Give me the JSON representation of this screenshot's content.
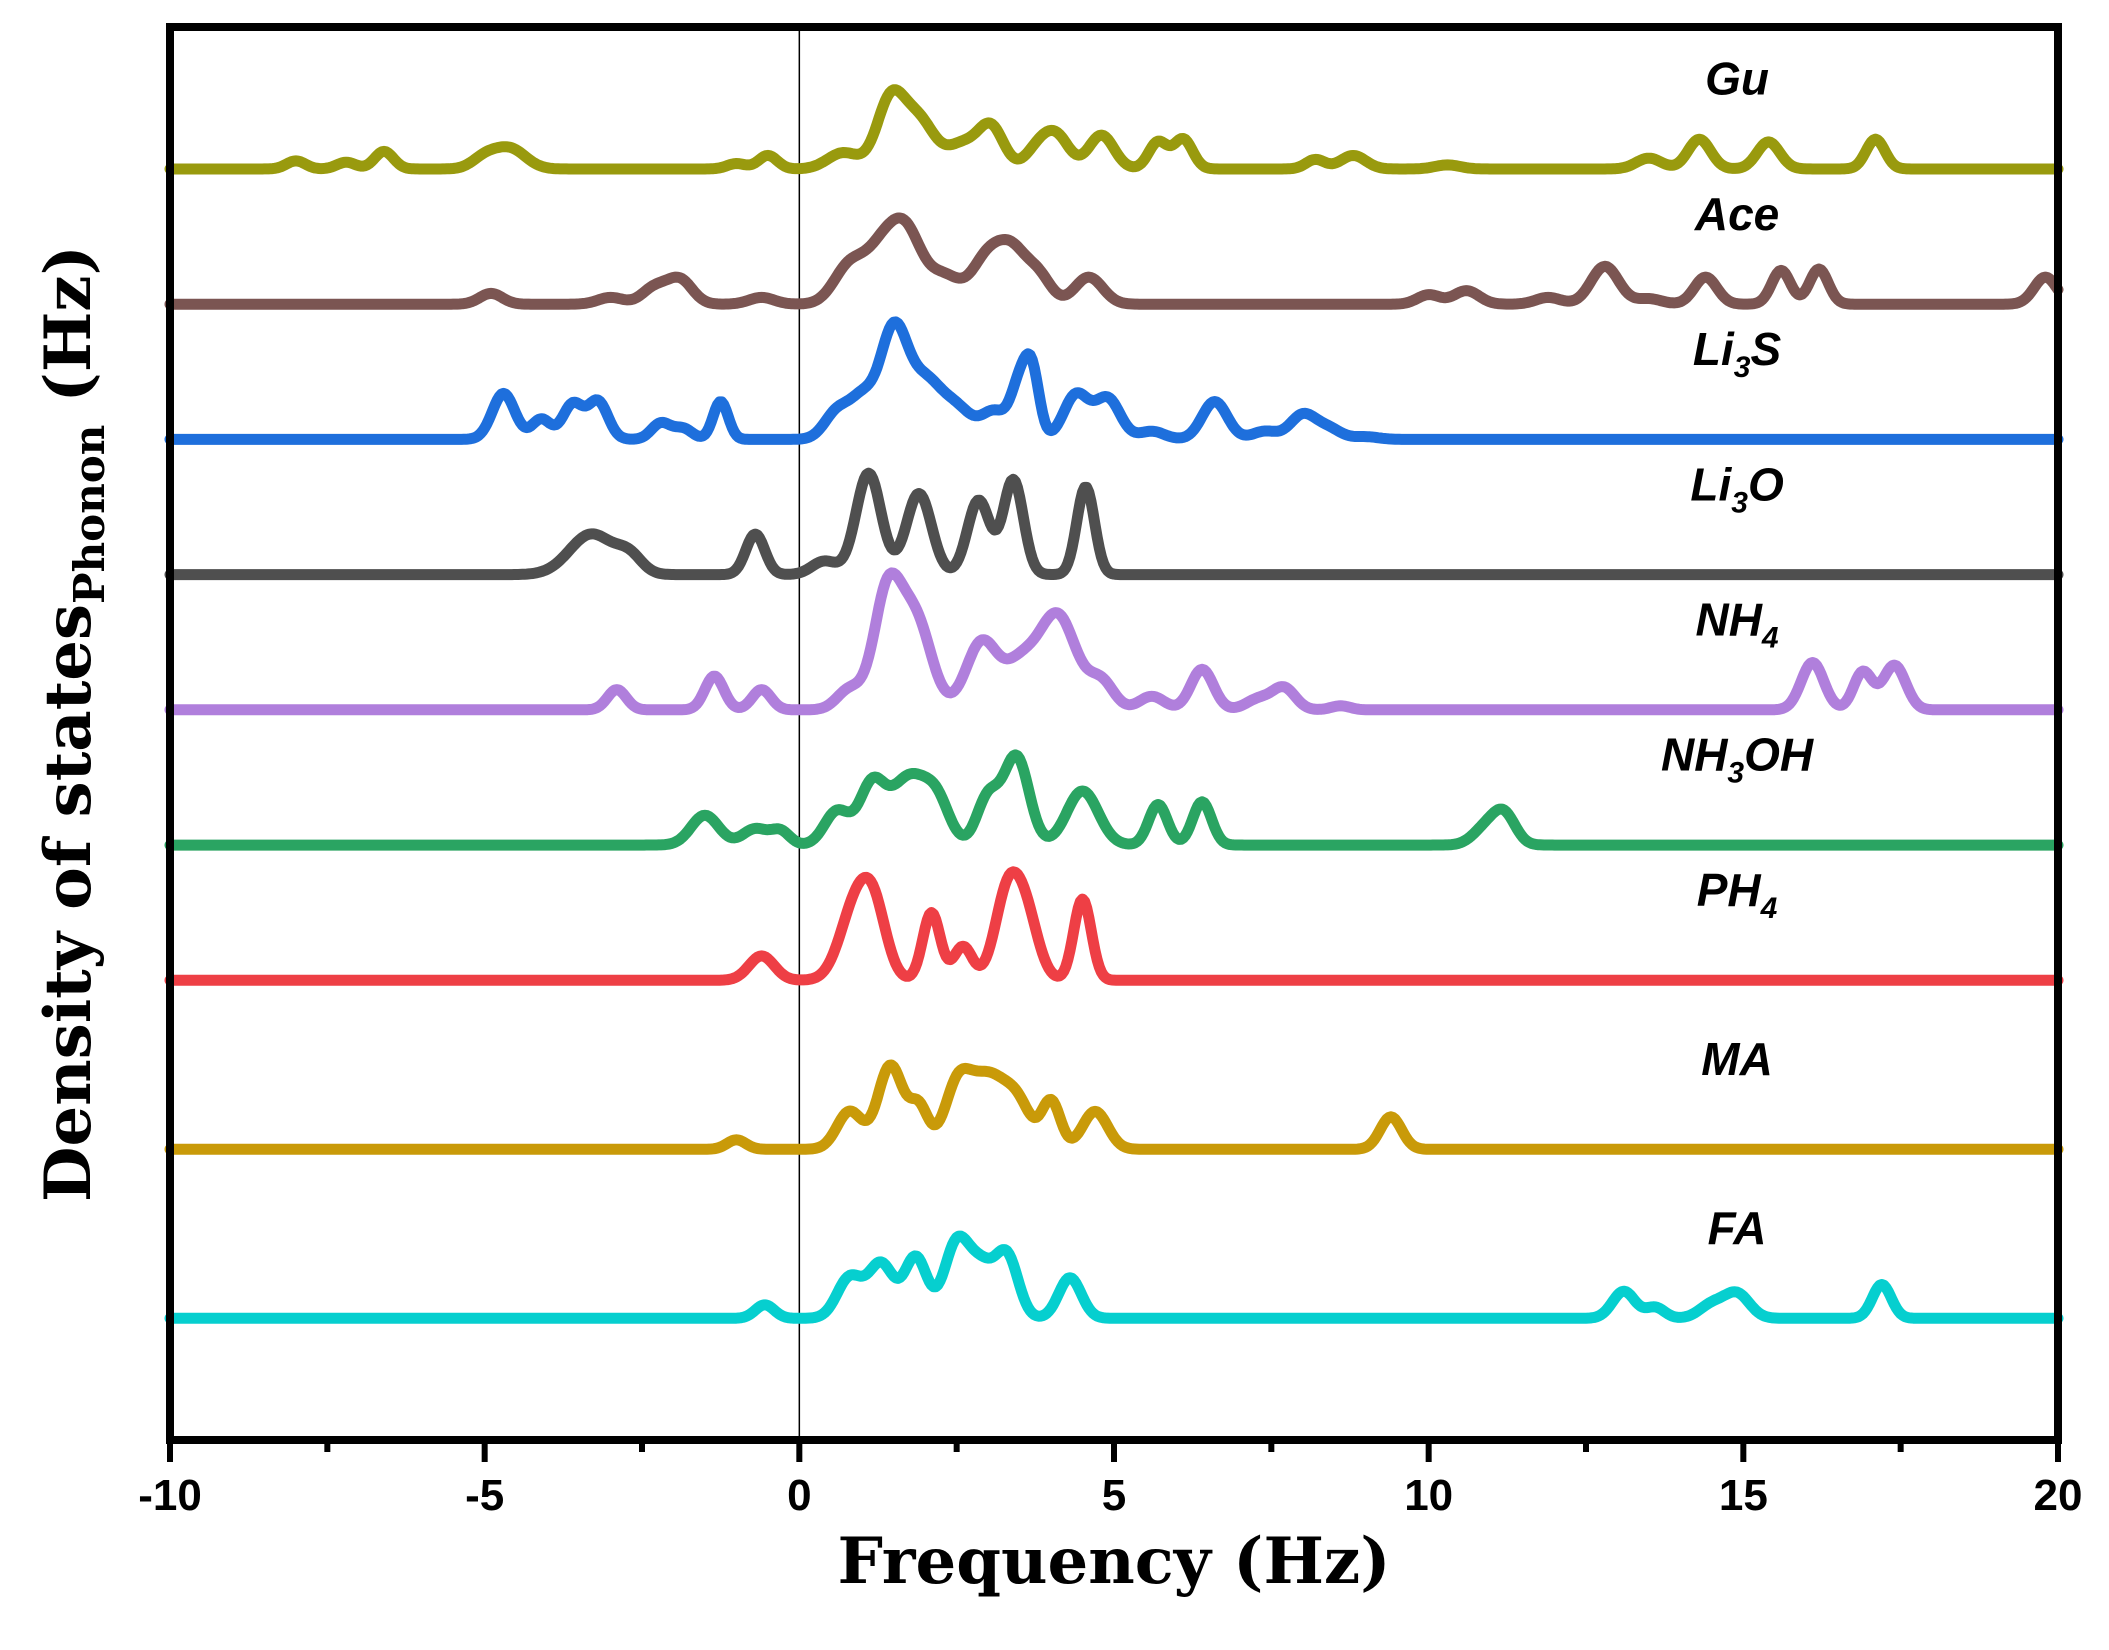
{
  "chart_data": {
    "type": "line",
    "title": "",
    "xlabel": "Frequency (Hz)",
    "ylabel": {
      "main": "Density of states",
      "sub": "Phonon",
      "unit": " (Hz)"
    },
    "xlim": [
      -10,
      20
    ],
    "xticks": [
      -10,
      -5,
      0,
      5,
      10,
      15,
      20
    ],
    "xtick_labels": [
      "-10",
      "-5",
      "0",
      "5",
      "10",
      "15",
      "20"
    ],
    "yticks_visible": false,
    "grid": false,
    "zero_line_x": 0,
    "series": [
      {
        "name": "Gu",
        "label_parts": [
          [
            "Gu",
            false
          ]
        ],
        "color": "#999a0e",
        "baseline": 8,
        "peaks": [
          [
            -8.0,
            0.06,
            0.15
          ],
          [
            -7.2,
            0.05,
            0.15
          ],
          [
            -6.6,
            0.13,
            0.15
          ],
          [
            -5.0,
            0.08,
            0.2
          ],
          [
            -4.6,
            0.15,
            0.25
          ],
          [
            -1.0,
            0.04,
            0.15
          ],
          [
            -0.5,
            0.1,
            0.15
          ],
          [
            0.7,
            0.12,
            0.25
          ],
          [
            1.45,
            0.5,
            0.22
          ],
          [
            1.9,
            0.35,
            0.25
          ],
          [
            2.6,
            0.18,
            0.25
          ],
          [
            3.05,
            0.3,
            0.2
          ],
          [
            3.8,
            0.15,
            0.2
          ],
          [
            4.1,
            0.22,
            0.2
          ],
          [
            4.8,
            0.25,
            0.2
          ],
          [
            5.7,
            0.2,
            0.15
          ],
          [
            6.1,
            0.22,
            0.15
          ],
          [
            8.2,
            0.07,
            0.15
          ],
          [
            8.8,
            0.1,
            0.2
          ],
          [
            10.3,
            0.03,
            0.2
          ],
          [
            13.5,
            0.08,
            0.2
          ],
          [
            14.3,
            0.22,
            0.18
          ],
          [
            15.4,
            0.2,
            0.18
          ],
          [
            17.1,
            0.22,
            0.15
          ]
        ]
      },
      {
        "name": "Ace",
        "label_parts": [
          [
            "Ace",
            false
          ]
        ],
        "color": "#7b5552",
        "baseline": 7,
        "peaks": [
          [
            -4.9,
            0.08,
            0.18
          ],
          [
            -3.0,
            0.05,
            0.2
          ],
          [
            -2.3,
            0.12,
            0.2
          ],
          [
            -1.9,
            0.18,
            0.2
          ],
          [
            -0.6,
            0.05,
            0.2
          ],
          [
            0.8,
            0.28,
            0.25
          ],
          [
            1.3,
            0.35,
            0.25
          ],
          [
            1.7,
            0.5,
            0.25
          ],
          [
            2.3,
            0.2,
            0.25
          ],
          [
            3.0,
            0.35,
            0.25
          ],
          [
            3.4,
            0.33,
            0.22
          ],
          [
            3.8,
            0.2,
            0.2
          ],
          [
            4.6,
            0.2,
            0.22
          ],
          [
            10.0,
            0.07,
            0.18
          ],
          [
            10.6,
            0.1,
            0.2
          ],
          [
            11.9,
            0.05,
            0.2
          ],
          [
            12.8,
            0.28,
            0.22
          ],
          [
            13.5,
            0.04,
            0.2
          ],
          [
            14.4,
            0.2,
            0.18
          ],
          [
            15.6,
            0.25,
            0.15
          ],
          [
            16.2,
            0.26,
            0.15
          ],
          [
            19.8,
            0.2,
            0.18
          ]
        ]
      },
      {
        "name": "Li3S",
        "label_parts": [
          [
            "Li",
            false
          ],
          [
            "3",
            true
          ],
          [
            "S",
            false
          ]
        ],
        "color": "#1e6fdc",
        "baseline": 6,
        "peaks": [
          [
            -4.7,
            0.34,
            0.18
          ],
          [
            -4.1,
            0.15,
            0.15
          ],
          [
            -3.6,
            0.26,
            0.16
          ],
          [
            -3.2,
            0.28,
            0.16
          ],
          [
            -2.2,
            0.12,
            0.15
          ],
          [
            -1.85,
            0.08,
            0.15
          ],
          [
            -1.25,
            0.28,
            0.12
          ],
          [
            0.6,
            0.2,
            0.2
          ],
          [
            1.0,
            0.28,
            0.2
          ],
          [
            1.5,
            0.8,
            0.22
          ],
          [
            2.0,
            0.4,
            0.25
          ],
          [
            2.5,
            0.22,
            0.25
          ],
          [
            3.1,
            0.2,
            0.2
          ],
          [
            3.5,
            0.38,
            0.14
          ],
          [
            3.7,
            0.45,
            0.12
          ],
          [
            4.4,
            0.33,
            0.2
          ],
          [
            4.9,
            0.3,
            0.2
          ],
          [
            5.6,
            0.06,
            0.2
          ],
          [
            6.6,
            0.28,
            0.2
          ],
          [
            7.4,
            0.06,
            0.2
          ],
          [
            8.0,
            0.18,
            0.2
          ],
          [
            8.4,
            0.08,
            0.2
          ],
          [
            9.0,
            0.02,
            0.2
          ]
        ]
      },
      {
        "name": "Li3O",
        "label_parts": [
          [
            "Li",
            false
          ],
          [
            "3",
            true
          ],
          [
            "O",
            false
          ]
        ],
        "color": "#4f4f4f",
        "baseline": 5,
        "peaks": [
          [
            -3.3,
            0.3,
            0.35
          ],
          [
            -2.7,
            0.12,
            0.2
          ],
          [
            -0.7,
            0.3,
            0.15
          ],
          [
            0.4,
            0.1,
            0.2
          ],
          [
            1.1,
            0.75,
            0.2
          ],
          [
            1.9,
            0.6,
            0.2
          ],
          [
            2.85,
            0.55,
            0.18
          ],
          [
            3.4,
            0.7,
            0.16
          ],
          [
            4.55,
            0.65,
            0.14
          ]
        ]
      },
      {
        "name": "NH4",
        "label_parts": [
          [
            "NH",
            false
          ],
          [
            "4",
            true
          ]
        ],
        "color": "#b07fdc",
        "baseline": 4,
        "peaks": [
          [
            -2.9,
            0.15,
            0.15
          ],
          [
            -1.35,
            0.25,
            0.15
          ],
          [
            -0.6,
            0.15,
            0.15
          ],
          [
            0.8,
            0.15,
            0.2
          ],
          [
            1.4,
            0.85,
            0.22
          ],
          [
            1.85,
            0.65,
            0.25
          ],
          [
            2.9,
            0.5,
            0.25
          ],
          [
            3.5,
            0.3,
            0.25
          ],
          [
            4.1,
            0.7,
            0.3
          ],
          [
            4.8,
            0.2,
            0.2
          ],
          [
            5.6,
            0.1,
            0.2
          ],
          [
            6.4,
            0.3,
            0.18
          ],
          [
            7.3,
            0.08,
            0.2
          ],
          [
            7.7,
            0.16,
            0.18
          ],
          [
            8.6,
            0.03,
            0.15
          ],
          [
            16.1,
            0.35,
            0.18
          ],
          [
            16.9,
            0.28,
            0.15
          ],
          [
            17.4,
            0.33,
            0.18
          ]
        ]
      },
      {
        "name": "NH3OH",
        "label_parts": [
          [
            "NH",
            false
          ],
          [
            "3",
            true
          ],
          [
            "OH",
            false
          ]
        ],
        "color": "#2aa462",
        "baseline": 3,
        "peaks": [
          [
            -1.5,
            0.22,
            0.22
          ],
          [
            -0.7,
            0.12,
            0.2
          ],
          [
            -0.3,
            0.1,
            0.15
          ],
          [
            0.6,
            0.25,
            0.2
          ],
          [
            1.15,
            0.42,
            0.2
          ],
          [
            1.75,
            0.5,
            0.3
          ],
          [
            2.2,
            0.25,
            0.2
          ],
          [
            3.0,
            0.35,
            0.18
          ],
          [
            3.45,
            0.65,
            0.2
          ],
          [
            4.5,
            0.4,
            0.25
          ],
          [
            5.7,
            0.3,
            0.15
          ],
          [
            6.4,
            0.32,
            0.15
          ],
          [
            10.9,
            0.12,
            0.2
          ],
          [
            11.2,
            0.22,
            0.18
          ]
        ]
      },
      {
        "name": "PH4",
        "label_parts": [
          [
            "PH",
            false
          ],
          [
            "4",
            true
          ]
        ],
        "color": "#ee3f45",
        "baseline": 2,
        "peaks": [
          [
            -0.6,
            0.18,
            0.2
          ],
          [
            0.9,
            0.55,
            0.25
          ],
          [
            1.2,
            0.4,
            0.2
          ],
          [
            2.1,
            0.5,
            0.14
          ],
          [
            2.6,
            0.25,
            0.15
          ],
          [
            3.3,
            0.6,
            0.2
          ],
          [
            3.6,
            0.45,
            0.2
          ],
          [
            4.5,
            0.6,
            0.14
          ]
        ]
      },
      {
        "name": "MA",
        "label_parts": [
          [
            "MA",
            false
          ]
        ],
        "color": "#c99a09",
        "baseline": 0.75,
        "peaks": [
          [
            -1.0,
            0.07,
            0.15
          ],
          [
            0.8,
            0.28,
            0.2
          ],
          [
            1.45,
            0.62,
            0.2
          ],
          [
            1.9,
            0.3,
            0.15
          ],
          [
            2.5,
            0.35,
            0.2
          ],
          [
            3.0,
            0.55,
            0.35
          ],
          [
            3.5,
            0.2,
            0.2
          ],
          [
            4.0,
            0.35,
            0.15
          ],
          [
            4.7,
            0.28,
            0.2
          ],
          [
            9.4,
            0.24,
            0.17
          ]
        ]
      },
      {
        "name": "FA",
        "label_parts": [
          [
            "FA",
            false
          ]
        ],
        "color": "#06cfcf",
        "baseline": -0.5,
        "peaks": [
          [
            -0.55,
            0.1,
            0.15
          ],
          [
            0.8,
            0.3,
            0.2
          ],
          [
            1.3,
            0.4,
            0.2
          ],
          [
            1.85,
            0.45,
            0.18
          ],
          [
            2.5,
            0.55,
            0.2
          ],
          [
            2.9,
            0.35,
            0.2
          ],
          [
            3.3,
            0.45,
            0.18
          ],
          [
            4.3,
            0.3,
            0.18
          ],
          [
            13.1,
            0.2,
            0.18
          ],
          [
            13.6,
            0.08,
            0.15
          ],
          [
            14.5,
            0.1,
            0.2
          ],
          [
            14.9,
            0.18,
            0.2
          ],
          [
            17.2,
            0.25,
            0.15
          ]
        ]
      }
    ]
  }
}
